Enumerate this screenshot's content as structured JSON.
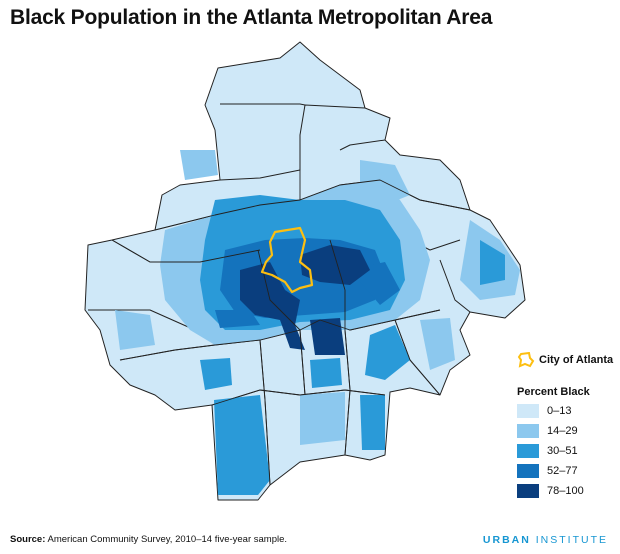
{
  "title": "Black Population in the Atlanta Metropolitan Area",
  "legend": {
    "city_label": "City of Atlanta",
    "city_color": "#fdbf11",
    "title": "Percent Black",
    "classes": [
      {
        "label": "0–13",
        "color": "#cfe8f8"
      },
      {
        "label": "14–29",
        "color": "#8cc8ee"
      },
      {
        "label": "30–51",
        "color": "#2a9ad8"
      },
      {
        "label": "52–77",
        "color": "#1473bd"
      },
      {
        "label": "78–100",
        "color": "#0a3e7e"
      }
    ]
  },
  "source": {
    "label": "Source:",
    "text": "American Community Survey, 2010–14 five-year sample."
  },
  "brand": {
    "part1": "URBAN",
    "part2": "INSTITUTE"
  }
}
